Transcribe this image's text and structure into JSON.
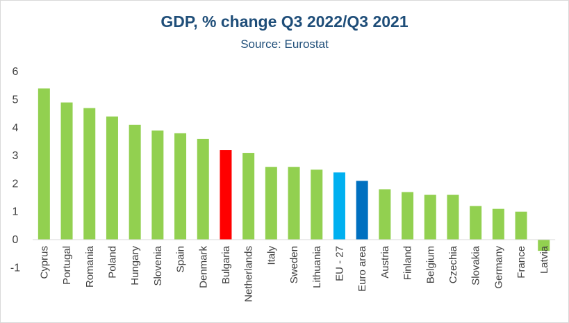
{
  "chart_data": {
    "type": "bar",
    "title": "GDP, % change Q3 2022/Q3 2021",
    "subtitle": "Source: Eurostat",
    "xlabel": "",
    "ylabel": "",
    "ylim": [
      -1,
      6
    ],
    "yticks": [
      -1,
      0,
      1,
      2,
      3,
      4,
      5,
      6
    ],
    "grid": false,
    "legend": "none",
    "categories": [
      "Cyprus",
      "Portugal",
      "Romania",
      "Poland",
      "Hungary",
      "Slovenia",
      "Spain",
      "Denmark",
      "Bulgaria",
      "Netherlands",
      "Italy",
      "Sweden",
      "Lithuania",
      "EU - 27",
      "Euro area",
      "Austria",
      "Finland",
      "Belgium",
      "Czechia",
      "Slovakia",
      "Germany",
      "France",
      "Latvia"
    ],
    "values": [
      5.4,
      4.9,
      4.7,
      4.4,
      4.1,
      3.9,
      3.8,
      3.6,
      3.2,
      3.1,
      2.6,
      2.6,
      2.5,
      2.4,
      2.1,
      1.8,
      1.7,
      1.6,
      1.6,
      1.2,
      1.1,
      1.0,
      -0.4
    ],
    "colors": {
      "default": "#92d050",
      "Bulgaria": "#ff0000",
      "EU - 27": "#00b0f0",
      "Euro area": "#0070c0"
    }
  }
}
